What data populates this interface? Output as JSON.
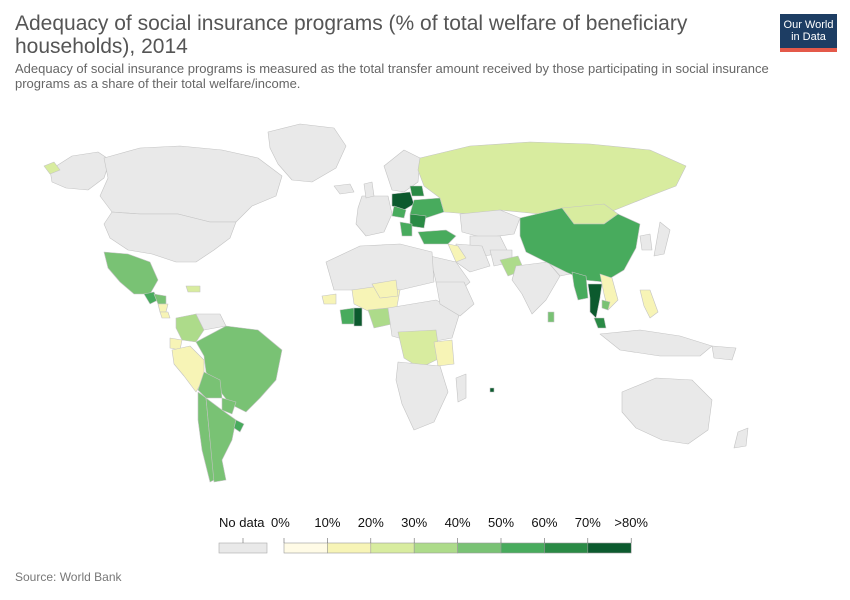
{
  "header": {
    "title": "Adequacy of social insurance programs (% of total welfare of beneficiary households), 2014",
    "subtitle": "Adequacy of social insurance programs is measured as the total transfer amount received by those participating in social insurance programs as a share of their total welfare/income."
  },
  "logo": {
    "line1": "Our World",
    "line2": "in Data"
  },
  "legend": {
    "no_data_label": "No data",
    "bins": [
      "0%",
      "10%",
      "20%",
      "30%",
      "40%",
      "50%",
      "60%",
      "70%",
      ">80%"
    ],
    "colors": [
      "#fffbe6",
      "#f7f4b6",
      "#d8ec9f",
      "#addb8a",
      "#79c274",
      "#48ab5d",
      "#2a8a45",
      "#0c5a2e"
    ],
    "no_data_color": "#e9e9e9"
  },
  "source": "Source: World Bank",
  "colors": {
    "no_data": "#e9e9e9",
    "border": "#c8c8c8"
  }
}
